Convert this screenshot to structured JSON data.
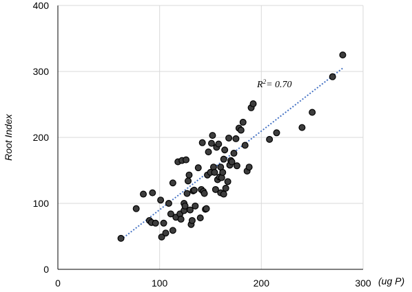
{
  "chart_data": {
    "type": "scatter",
    "title": "",
    "xlabel": "(ug P)",
    "ylabel": "Root Index",
    "xlim": [
      0,
      300
    ],
    "ylim": [
      0,
      400
    ],
    "x_ticks": [
      "0",
      "100",
      "200",
      "300"
    ],
    "y_ticks": [
      "0",
      "100",
      "200",
      "300",
      "400"
    ],
    "grid": true,
    "legend": "none",
    "colors": {
      "point_fill": "#3d3d3d",
      "point_stroke": "#000000",
      "trendline": "#4472c4",
      "grid": "#d9d9d9"
    },
    "trendline": {
      "type": "linear",
      "x": [
        62,
        280
      ],
      "y": [
        45,
        305
      ],
      "label": "R",
      "label_sup": "2",
      "label_rest": "= 0.70"
    },
    "series": [
      {
        "x": [
          62,
          77,
          84,
          90,
          92,
          93,
          96,
          101,
          102,
          104,
          106,
          109,
          111,
          113,
          113,
          116,
          118,
          120,
          121,
          122,
          124,
          124,
          125,
          126,
          127,
          128,
          129,
          130,
          131,
          132,
          133,
          134,
          135,
          138,
          140,
          141,
          142,
          143,
          144,
          145,
          146,
          147,
          148,
          150,
          151,
          152,
          153,
          154,
          155,
          156,
          157,
          158,
          159,
          160,
          160,
          161,
          162,
          163,
          163,
          164,
          165,
          167,
          168,
          169,
          170,
          171,
          173,
          175,
          176,
          178,
          180,
          182,
          184,
          186,
          188,
          190,
          192,
          208,
          215,
          240,
          250,
          270,
          280
        ],
        "y": [
          47,
          92,
          114,
          74,
          71,
          116,
          70,
          105,
          49,
          70,
          55,
          100,
          84,
          131,
          59,
          79,
          163,
          84,
          76,
          165,
          100,
          89,
          96,
          166,
          115,
          134,
          143,
          90,
          68,
          74,
          119,
          120,
          96,
          154,
          78,
          121,
          192,
          118,
          115,
          91,
          92,
          143,
          178,
          147,
          191,
          203,
          155,
          147,
          121,
          185,
          136,
          190,
          140,
          116,
          155,
          139,
          147,
          167,
          114,
          181,
          123,
          133,
          199,
          158,
          165,
          163,
          176,
          198,
          157,
          214,
          211,
          223,
          188,
          149,
          155,
          245,
          251,
          197,
          207,
          215,
          238,
          292,
          325
        ]
      }
    ]
  }
}
